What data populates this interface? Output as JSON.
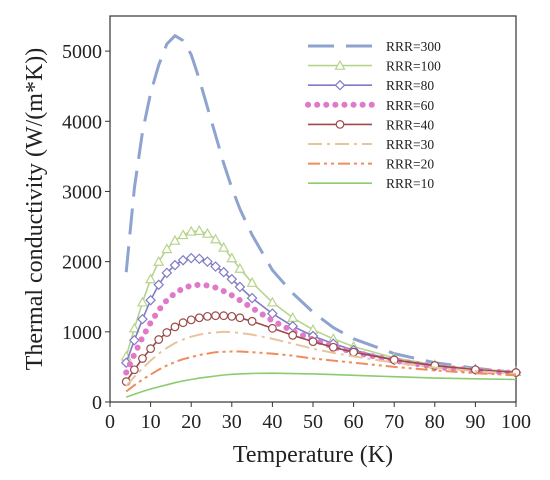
{
  "chart_data": {
    "type": "line",
    "title": "",
    "xlabel": "Temperature (K)",
    "ylabel": "Thermal conductivity (W/(m*K))",
    "xlim": [
      0,
      100
    ],
    "ylim": [
      0,
      5500
    ],
    "xticks": [
      "0",
      "10",
      "20",
      "30",
      "40",
      "50",
      "60",
      "70",
      "80",
      "90",
      "100"
    ],
    "yticks": [
      "0",
      "1000",
      "2000",
      "3000",
      "4000",
      "5000"
    ],
    "grid": false,
    "legend_position": "top-right",
    "series": [
      {
        "name": "RRR=300",
        "color": "#8ea3cf",
        "style": "long-dash",
        "marker": "none",
        "x": [
          4,
          6,
          8,
          10,
          12,
          14,
          16,
          18,
          20,
          22,
          24,
          26,
          28,
          30,
          32,
          35,
          40,
          45,
          50,
          55,
          60,
          70,
          80,
          90,
          100
        ],
        "y": [
          1850,
          3050,
          3850,
          4400,
          4800,
          5100,
          5220,
          5150,
          4950,
          4600,
          4200,
          3800,
          3400,
          3050,
          2750,
          2380,
          1880,
          1550,
          1280,
          1060,
          900,
          690,
          560,
          480,
          420
        ]
      },
      {
        "name": "RRR=100",
        "color": "#b6d48c",
        "style": "solid",
        "marker": "triangle",
        "x": [
          4,
          6,
          8,
          10,
          12,
          14,
          16,
          18,
          20,
          22,
          24,
          26,
          28,
          30,
          32,
          35,
          40,
          45,
          50,
          55,
          60,
          70,
          80,
          90,
          100
        ],
        "y": [
          650,
          1050,
          1420,
          1750,
          2000,
          2180,
          2300,
          2380,
          2430,
          2440,
          2400,
          2320,
          2200,
          2050,
          1900,
          1700,
          1420,
          1200,
          1030,
          900,
          790,
          630,
          530,
          470,
          430
        ]
      },
      {
        "name": "RRR=80",
        "color": "#7f7bc8",
        "style": "solid",
        "marker": "diamond",
        "x": [
          4,
          6,
          8,
          10,
          12,
          14,
          16,
          18,
          20,
          22,
          24,
          26,
          28,
          30,
          32,
          35,
          40,
          45,
          50,
          55,
          60,
          70,
          80,
          90,
          100
        ],
        "y": [
          560,
          880,
          1180,
          1450,
          1670,
          1840,
          1950,
          2020,
          2050,
          2040,
          2000,
          1930,
          1850,
          1750,
          1640,
          1480,
          1260,
          1080,
          940,
          830,
          740,
          600,
          510,
          460,
          420
        ]
      },
      {
        "name": "RRR=60",
        "color": "#e07ac8",
        "style": "dotted",
        "marker": "none",
        "x": [
          4,
          6,
          8,
          10,
          12,
          14,
          16,
          18,
          20,
          22,
          24,
          26,
          28,
          30,
          32,
          35,
          40,
          45,
          50,
          55,
          60,
          70,
          80,
          90,
          100
        ],
        "y": [
          420,
          680,
          920,
          1130,
          1310,
          1450,
          1550,
          1620,
          1660,
          1670,
          1660,
          1630,
          1580,
          1520,
          1450,
          1340,
          1160,
          1010,
          890,
          790,
          710,
          590,
          500,
          450,
          410
        ]
      },
      {
        "name": "RRR=40",
        "color": "#9c4a4a",
        "style": "solid",
        "marker": "circle",
        "x": [
          4,
          6,
          8,
          10,
          12,
          14,
          16,
          18,
          20,
          22,
          24,
          26,
          28,
          30,
          32,
          35,
          40,
          45,
          50,
          55,
          60,
          70,
          80,
          90,
          100
        ],
        "y": [
          290,
          460,
          620,
          760,
          890,
          990,
          1070,
          1130,
          1170,
          1200,
          1220,
          1230,
          1230,
          1220,
          1200,
          1150,
          1050,
          950,
          860,
          780,
          710,
          600,
          520,
          460,
          420
        ]
      },
      {
        "name": "RRR=30",
        "color": "#e8c49c",
        "style": "dash-dot",
        "marker": "none",
        "x": [
          4,
          6,
          8,
          10,
          12,
          14,
          16,
          18,
          20,
          22,
          24,
          26,
          28,
          30,
          32,
          35,
          40,
          45,
          50,
          55,
          60,
          70,
          80,
          90,
          100
        ],
        "y": [
          230,
          360,
          480,
          590,
          690,
          770,
          840,
          890,
          930,
          960,
          980,
          990,
          1000,
          995,
          985,
          960,
          900,
          830,
          760,
          700,
          650,
          560,
          490,
          440,
          400
        ]
      },
      {
        "name": "RRR=20",
        "color": "#ef8c5c",
        "style": "dash-dot-dot",
        "marker": "none",
        "x": [
          4,
          6,
          8,
          10,
          12,
          14,
          16,
          18,
          20,
          22,
          24,
          26,
          28,
          30,
          32,
          35,
          40,
          45,
          50,
          55,
          60,
          70,
          80,
          90,
          100
        ],
        "y": [
          150,
          240,
          320,
          390,
          460,
          520,
          570,
          610,
          640,
          670,
          690,
          710,
          715,
          720,
          720,
          710,
          690,
          660,
          620,
          590,
          560,
          500,
          450,
          410,
          380
        ]
      },
      {
        "name": "RRR=10",
        "color": "#8dcb6e",
        "style": "solid",
        "marker": "none",
        "x": [
          4,
          6,
          8,
          10,
          12,
          14,
          16,
          18,
          20,
          22,
          24,
          26,
          28,
          30,
          32,
          35,
          40,
          45,
          50,
          55,
          60,
          70,
          80,
          90,
          100
        ],
        "y": [
          70,
          110,
          150,
          185,
          215,
          245,
          275,
          300,
          320,
          340,
          355,
          370,
          385,
          395,
          400,
          408,
          410,
          405,
          400,
          390,
          380,
          360,
          340,
          330,
          320
        ]
      }
    ]
  }
}
